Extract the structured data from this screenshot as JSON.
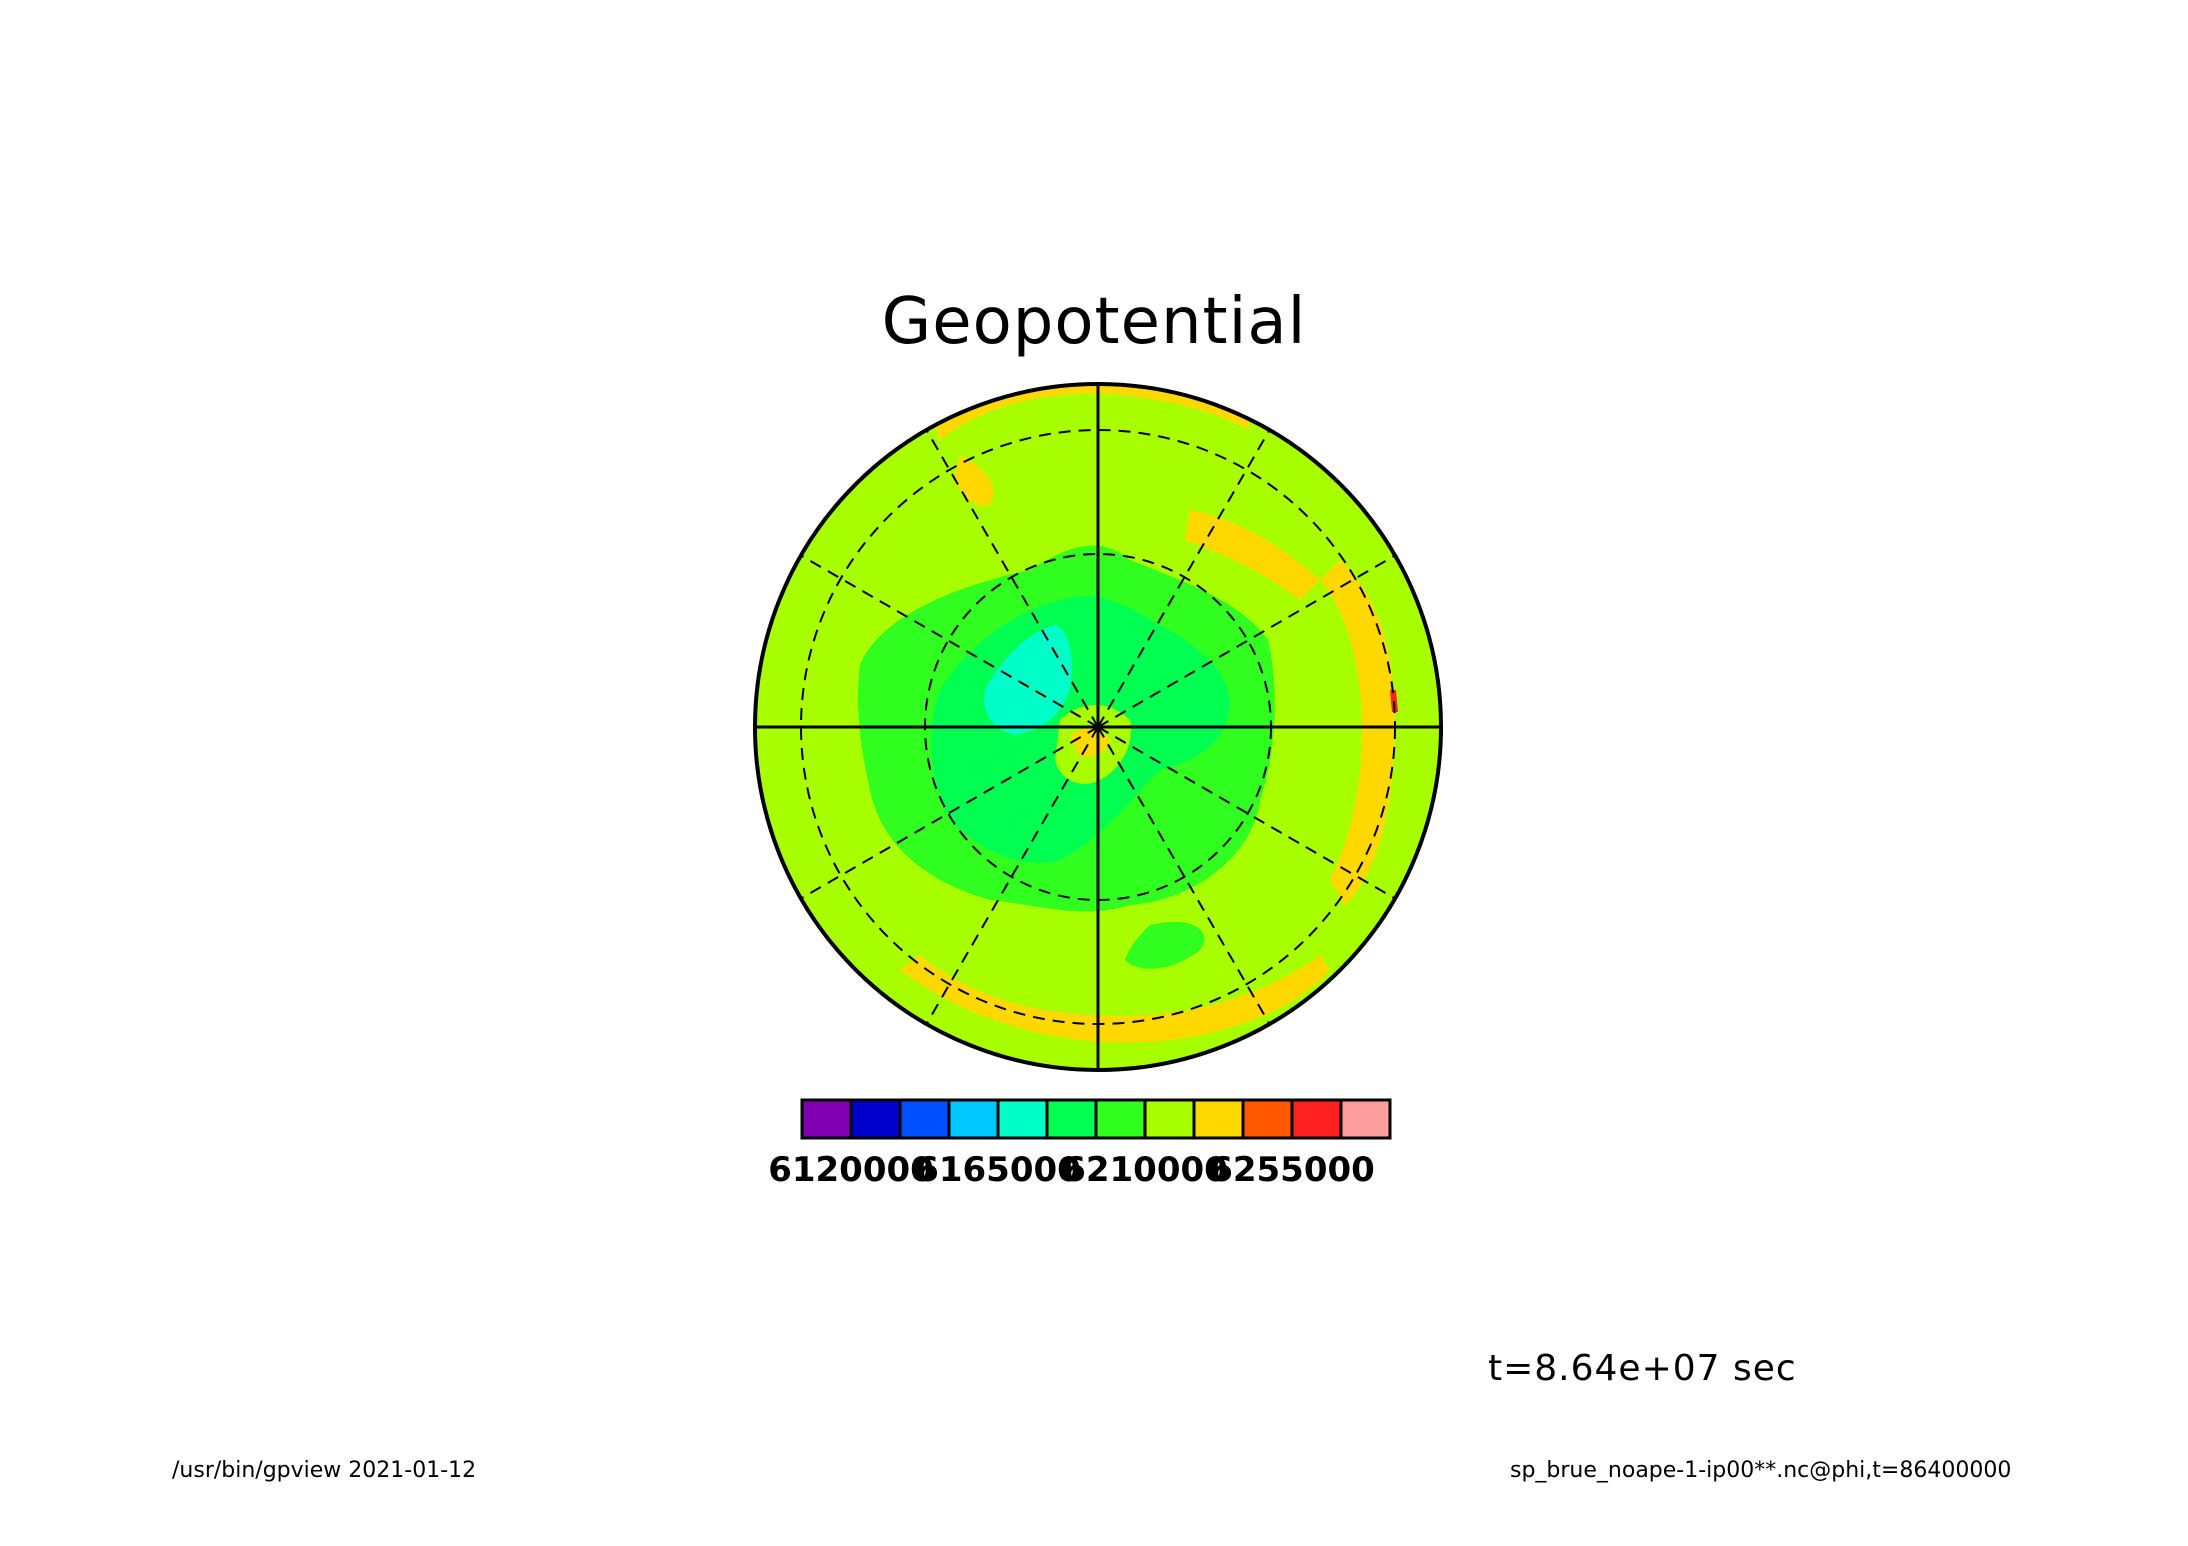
{
  "title": "Geopotential",
  "time_label": "t=8.64e+07 sec",
  "footer": {
    "program_date": "/usr/bin/gpview  2021-01-12",
    "source": "sp_brue_noape-1-ip00**.nc@phi,t=86400000"
  },
  "colorbar": {
    "colors": [
      "#7f00b0",
      "#0000cc",
      "#0050ff",
      "#00c8ff",
      "#00ffc8",
      "#00ff50",
      "#30ff20",
      "#a8ff00",
      "#ffd800",
      "#ff5800",
      "#ff2020",
      "#ff9e9e"
    ],
    "labels": [
      {
        "text": "6120000",
        "boundary": 1
      },
      {
        "text": "6165000",
        "boundary": 4
      },
      {
        "text": "6210000",
        "boundary": 7
      },
      {
        "text": "6255000",
        "boundary": 10
      }
    ]
  },
  "map": {
    "projection": "polar stereographic",
    "background_level_color": "#a8ff00",
    "meridian_count_dashed": 12,
    "latitude_circles_dashed": 3
  }
}
